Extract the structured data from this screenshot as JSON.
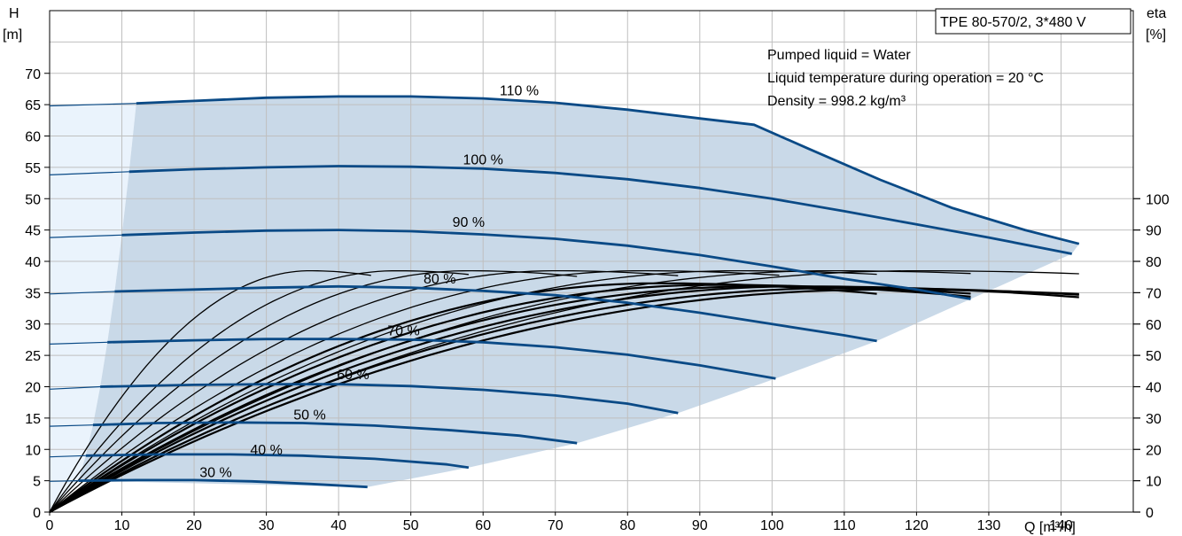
{
  "chart_data": {
    "type": "line",
    "title": "TPE 80-570/2, 3*480 V",
    "info_lines": [
      "Pumped liquid = Water",
      "Liquid temperature during operation = 20 °C",
      "Density = 998.2 kg/m³"
    ],
    "x_axis": {
      "label": "Q [m³/h]",
      "range": [
        0,
        150
      ],
      "ticks": [
        "0",
        "10",
        "20",
        "30",
        "40",
        "50",
        "60",
        "70",
        "80",
        "90",
        "100",
        "110",
        "120",
        "130",
        "140"
      ]
    },
    "y_axis_left": {
      "label_line1": "H",
      "label_line2": "[m]",
      "range": [
        0,
        80
      ],
      "ticks": [
        "0",
        "5",
        "10",
        "15",
        "20",
        "25",
        "30",
        "35",
        "40",
        "45",
        "50",
        "55",
        "60",
        "65",
        "70"
      ]
    },
    "y_axis_right": {
      "label_line1": "eta",
      "label_line2": "[%]",
      "range": [
        0,
        160
      ],
      "ticks": [
        "0",
        "10",
        "20",
        "30",
        "40",
        "50",
        "60",
        "70",
        "80",
        "90",
        "100"
      ]
    },
    "grid": true,
    "colors": {
      "head_curve": "#0a4a86",
      "operating_area": "#c9d9e8",
      "min_flow_area": "#eaf3fc",
      "efficiency_curve": "#000000",
      "grid": "#bfbfbf"
    },
    "head_curves": [
      {
        "label": "110 %",
        "label_at": [
          65,
          66.5
        ],
        "points": [
          [
            0,
            64.8
          ],
          [
            12,
            65.2
          ],
          [
            20,
            65.6
          ],
          [
            30,
            66.1
          ],
          [
            40,
            66.3
          ],
          [
            50,
            66.3
          ],
          [
            60,
            66.0
          ],
          [
            70,
            65.3
          ],
          [
            80,
            64.2
          ],
          [
            90,
            62.8
          ],
          [
            97.5,
            61.8
          ],
          [
            105,
            58.0
          ],
          [
            115,
            53.0
          ],
          [
            125,
            48.5
          ],
          [
            135,
            45.0
          ],
          [
            142.5,
            42.8
          ]
        ]
      },
      {
        "label": "100 %",
        "label_at": [
          60,
          55.5
        ],
        "points": [
          [
            0,
            53.8
          ],
          [
            11,
            54.3
          ],
          [
            20,
            54.7
          ],
          [
            30,
            55.0
          ],
          [
            40,
            55.2
          ],
          [
            50,
            55.1
          ],
          [
            60,
            54.8
          ],
          [
            70,
            54.1
          ],
          [
            80,
            53.1
          ],
          [
            90,
            51.7
          ],
          [
            100,
            50.0
          ],
          [
            110,
            48.0
          ],
          [
            120,
            45.9
          ],
          [
            130,
            43.8
          ],
          [
            141.5,
            41.2
          ]
        ]
      },
      {
        "label": "90 %",
        "label_at": [
          58,
          45.5
        ],
        "points": [
          [
            0,
            43.8
          ],
          [
            10,
            44.2
          ],
          [
            20,
            44.6
          ],
          [
            30,
            44.9
          ],
          [
            40,
            45.0
          ],
          [
            50,
            44.8
          ],
          [
            60,
            44.3
          ],
          [
            70,
            43.6
          ],
          [
            80,
            42.5
          ],
          [
            90,
            41.0
          ],
          [
            100,
            39.2
          ],
          [
            110,
            37.2
          ],
          [
            120,
            35.5
          ],
          [
            127.5,
            34.0
          ]
        ]
      },
      {
        "label": "80 %",
        "label_at": [
          54,
          36.5
        ],
        "points": [
          [
            0,
            34.8
          ],
          [
            9,
            35.2
          ],
          [
            20,
            35.5
          ],
          [
            30,
            35.8
          ],
          [
            40,
            36.0
          ],
          [
            50,
            35.8
          ],
          [
            60,
            35.3
          ],
          [
            70,
            34.6
          ],
          [
            80,
            33.4
          ],
          [
            90,
            31.8
          ],
          [
            100,
            30.0
          ],
          [
            110,
            28.2
          ],
          [
            114.5,
            27.3
          ]
        ]
      },
      {
        "label": "70 %",
        "label_at": [
          49,
          28.2
        ],
        "points": [
          [
            0,
            26.8
          ],
          [
            8,
            27.1
          ],
          [
            20,
            27.4
          ],
          [
            30,
            27.6
          ],
          [
            40,
            27.6
          ],
          [
            50,
            27.5
          ],
          [
            60,
            27.1
          ],
          [
            70,
            26.3
          ],
          [
            80,
            25.1
          ],
          [
            90,
            23.4
          ],
          [
            100.5,
            21.3
          ]
        ]
      },
      {
        "label": "60 %",
        "label_at": [
          42,
          21.2
        ],
        "points": [
          [
            0,
            19.6
          ],
          [
            7,
            20.0
          ],
          [
            20,
            20.3
          ],
          [
            30,
            20.4
          ],
          [
            40,
            20.4
          ],
          [
            50,
            20.1
          ],
          [
            60,
            19.5
          ],
          [
            70,
            18.6
          ],
          [
            80,
            17.3
          ],
          [
            87,
            15.8
          ]
        ]
      },
      {
        "label": "50 %",
        "label_at": [
          36,
          14.8
        ],
        "points": [
          [
            0,
            13.7
          ],
          [
            6,
            13.9
          ],
          [
            15,
            14.2
          ],
          [
            25,
            14.3
          ],
          [
            35,
            14.2
          ],
          [
            45,
            13.8
          ],
          [
            55,
            13.1
          ],
          [
            65,
            12.2
          ],
          [
            73,
            11.0
          ]
        ]
      },
      {
        "label": "40 %",
        "label_at": [
          30,
          9.2
        ],
        "points": [
          [
            0,
            8.8
          ],
          [
            5,
            9.0
          ],
          [
            15,
            9.2
          ],
          [
            25,
            9.2
          ],
          [
            35,
            9.0
          ],
          [
            45,
            8.5
          ],
          [
            55,
            7.6
          ],
          [
            58,
            7.1
          ]
        ]
      },
      {
        "label": "30 %",
        "label_at": [
          23,
          5.6
        ],
        "points": [
          [
            0,
            4.9
          ],
          [
            4,
            5.0
          ],
          [
            12,
            5.1
          ],
          [
            20,
            5.1
          ],
          [
            28,
            4.9
          ],
          [
            36,
            4.5
          ],
          [
            44,
            4.0
          ]
        ]
      }
    ],
    "efficiency_curves": [
      {
        "peak_q": 36,
        "peak_eta": 77,
        "q_end": 44.5
      },
      {
        "peak_q": 48,
        "peak_eta": 77,
        "q_end": 58
      },
      {
        "peak_q": 58,
        "peak_eta": 77,
        "q_end": 73
      },
      {
        "peak_q": 70,
        "peak_eta": 77,
        "q_end": 87
      },
      {
        "peak_q": 82,
        "peak_eta": 77,
        "q_end": 101
      },
      {
        "peak_q": 95,
        "peak_eta": 77,
        "q_end": 114.5
      },
      {
        "peak_q": 108,
        "peak_eta": 77,
        "q_end": 127.5
      },
      {
        "peak_q": 120,
        "peak_eta": 77,
        "q_end": 142.5
      },
      {
        "peak_q": 84,
        "peak_eta": 73,
        "q_end": 114.5
      },
      {
        "peak_q": 92,
        "peak_eta": 72.5,
        "q_end": 127.5
      },
      {
        "peak_q": 98,
        "peak_eta": 72,
        "q_end": 127.5
      },
      {
        "peak_q": 104,
        "peak_eta": 72,
        "q_end": 142.5
      },
      {
        "peak_q": 110,
        "peak_eta": 71.5,
        "q_end": 142.5
      },
      {
        "peak_q": 115,
        "peak_eta": 71,
        "q_end": 142.5
      }
    ]
  }
}
